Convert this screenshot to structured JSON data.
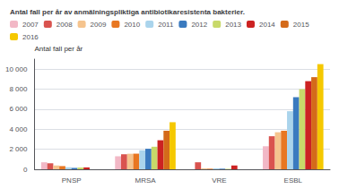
{
  "chart_data": {
    "type": "bar",
    "title": "Antal fall per år av anmälningspliktiga antibiotikaresistenta bakterier.",
    "ylabel": "Antal fall per år",
    "categories": [
      "PNSP",
      "MRSA",
      "VRE",
      "ESBL"
    ],
    "series": [
      {
        "name": "2007",
        "color": "#f2b8c6",
        "values": [
          700,
          1300,
          0,
          2300
        ]
      },
      {
        "name": "2008",
        "color": "#d9534f",
        "values": [
          600,
          1500,
          700,
          3300
        ]
      },
      {
        "name": "2009",
        "color": "#f5c48e",
        "values": [
          380,
          1550,
          100,
          3700
        ]
      },
      {
        "name": "2010",
        "color": "#e87722",
        "values": [
          320,
          1560,
          60,
          3850
        ]
      },
      {
        "name": "2011",
        "color": "#aad4ec",
        "values": [
          200,
          1900,
          100,
          5800
        ]
      },
      {
        "name": "2012",
        "color": "#3a7abf",
        "values": [
          140,
          2050,
          60,
          7200
        ]
      },
      {
        "name": "2013",
        "color": "#c8d96a",
        "values": [
          180,
          2250,
          50,
          8000
        ]
      },
      {
        "name": "2014",
        "color": "#cc2222",
        "values": [
          190,
          2900,
          380,
          8800
        ]
      },
      {
        "name": "2015",
        "color": "#d46a1a",
        "values": [
          0,
          3850,
          0,
          9200
        ]
      },
      {
        "name": "2016",
        "color": "#f5c800",
        "values": [
          0,
          4700,
          0,
          10500
        ]
      }
    ],
    "ylim": [
      0,
      11000
    ],
    "yticks": [
      0,
      {
        "value": 2000,
        "label": "2 000"
      },
      {
        "value": 4000,
        "label": "4 000"
      },
      {
        "value": 6000,
        "label": "6 000"
      },
      {
        "value": 8000,
        "label": "8 000"
      },
      {
        "value": 10000,
        "label": "10 000"
      }
    ],
    "grid": true,
    "legend": "upper left"
  }
}
